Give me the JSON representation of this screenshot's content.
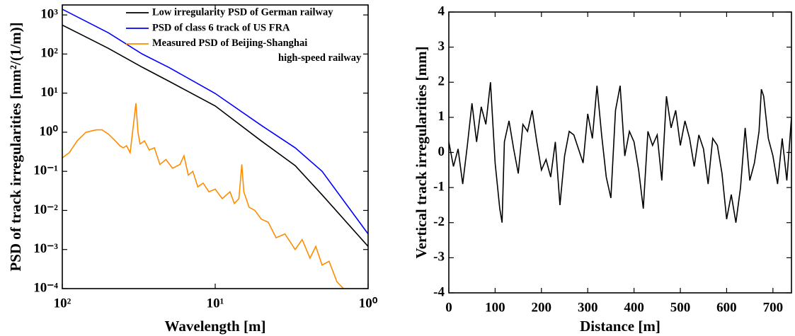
{
  "chart_data": [
    {
      "type": "line",
      "xlabel": "Wavelength [m]",
      "ylabel": "PSD of track irregularities [mm²/(1/m)]",
      "xscale": "log",
      "yscale": "log",
      "xlim": [
        100,
        1
      ],
      "ylim": [
        0.0001,
        1800
      ],
      "xticks": [
        {
          "value": 100,
          "label": "10²"
        },
        {
          "value": 10,
          "label": "10¹"
        },
        {
          "value": 1,
          "label": "10⁰"
        }
      ],
      "yticks": [
        {
          "value": 0.0001,
          "label": "10⁻⁴"
        },
        {
          "value": 0.001,
          "label": "10⁻³"
        },
        {
          "value": 0.01,
          "label": "10⁻²"
        },
        {
          "value": 0.1,
          "label": "10⁻¹"
        },
        {
          "value": 1,
          "label": "10⁰"
        },
        {
          "value": 10,
          "label": "10¹"
        },
        {
          "value": 100,
          "label": "10²"
        },
        {
          "value": 1000,
          "label": "10³"
        }
      ],
      "grid": false,
      "legend": "upper right",
      "series": [
        {
          "name": "Low irregularity PSD of German railway",
          "color": "#000000",
          "x": [
            100,
            50,
            30,
            20,
            10,
            5,
            3,
            2,
            1
          ],
          "values": [
            550,
            140,
            46,
            20,
            4.7,
            0.6,
            0.14,
            0.025,
            0.0012
          ]
        },
        {
          "name": "PSD of class 6 track of US FRA",
          "color": "#0000ff",
          "x": [
            100,
            50,
            30,
            20,
            10,
            5,
            3,
            2,
            1
          ],
          "values": [
            1400,
            350,
            100,
            45,
            9.8,
            1.5,
            0.4,
            0.1,
            0.0025
          ]
        },
        {
          "name": "Measured PSD of Beijing-Shanghai\nhigh-speed railway",
          "color": "#ff8c00",
          "x": [
            100,
            90,
            80,
            70,
            60,
            55,
            50,
            45,
            42,
            40,
            38,
            36,
            34,
            33,
            32,
            31,
            29,
            27,
            25,
            23,
            21,
            19,
            17,
            16,
            15,
            14,
            13,
            12,
            11,
            10,
            9,
            8,
            7.5,
            7,
            6.7,
            6.5,
            6,
            5.5,
            5,
            4.5,
            4,
            3.5,
            3,
            2.7,
            2.4,
            2.2,
            2,
            1.8,
            1.6,
            1.45
          ],
          "values": [
            0.22,
            0.3,
            0.6,
            1.0,
            1.15,
            1.15,
            0.9,
            0.6,
            0.45,
            0.4,
            0.45,
            0.3,
            2,
            5.5,
            1.0,
            0.5,
            0.6,
            0.35,
            0.4,
            0.15,
            0.2,
            0.12,
            0.15,
            0.25,
            0.08,
            0.1,
            0.04,
            0.05,
            0.03,
            0.035,
            0.02,
            0.03,
            0.015,
            0.02,
            0.15,
            0.03,
            0.012,
            0.01,
            0.006,
            0.005,
            0.002,
            0.0025,
            0.001,
            0.0018,
            0.0006,
            0.0012,
            0.0004,
            0.0005,
            0.00015,
            0.0001
          ]
        }
      ]
    },
    {
      "type": "line",
      "xlabel": "Distance [m]",
      "ylabel": "Vertical track irregularities [mm]",
      "xlim": [
        0,
        740
      ],
      "ylim": [
        -4,
        4
      ],
      "xticks": [
        0,
        100,
        200,
        300,
        400,
        500,
        600,
        700
      ],
      "yticks": [
        -4,
        -3,
        -2,
        -1,
        0,
        1,
        2,
        3,
        4
      ],
      "grid": false,
      "color": "#000000",
      "x": [
        0,
        10,
        20,
        30,
        40,
        50,
        60,
        70,
        80,
        90,
        100,
        110,
        115,
        120,
        130,
        140,
        150,
        160,
        170,
        180,
        190,
        200,
        210,
        220,
        230,
        240,
        250,
        260,
        270,
        280,
        290,
        300,
        310,
        320,
        330,
        340,
        350,
        360,
        370,
        380,
        390,
        400,
        410,
        420,
        430,
        440,
        450,
        460,
        470,
        480,
        490,
        500,
        510,
        520,
        530,
        540,
        550,
        560,
        570,
        580,
        590,
        600,
        610,
        620,
        630,
        640,
        650,
        660,
        670,
        675,
        680,
        690,
        700,
        710,
        720,
        730,
        740
      ],
      "values": [
        0.3,
        -0.4,
        0.1,
        -0.9,
        0.2,
        1.4,
        0.3,
        1.3,
        0.8,
        2.0,
        -0.3,
        -1.6,
        -2.0,
        0.3,
        0.9,
        0.1,
        -0.6,
        0.8,
        0.6,
        1.2,
        0.3,
        -0.5,
        -0.2,
        -0.7,
        0.3,
        -1.5,
        -0.1,
        0.6,
        0.5,
        0.1,
        -0.3,
        1.1,
        0.4,
        1.9,
        0.5,
        -0.7,
        -1.3,
        1.2,
        1.9,
        -0.1,
        0.6,
        0.3,
        -0.5,
        -1.6,
        0.6,
        0.2,
        0.5,
        -0.8,
        1.6,
        0.7,
        1.2,
        0.2,
        0.9,
        0.4,
        -0.4,
        0.5,
        0.1,
        -0.9,
        0.4,
        0.2,
        -0.6,
        -1.9,
        -1.2,
        -2.0,
        -1.0,
        0.7,
        -0.8,
        -0.3,
        0.6,
        1.8,
        1.6,
        0.4,
        -0.1,
        -0.9,
        0.4,
        -0.8,
        1.0
      ]
    }
  ]
}
